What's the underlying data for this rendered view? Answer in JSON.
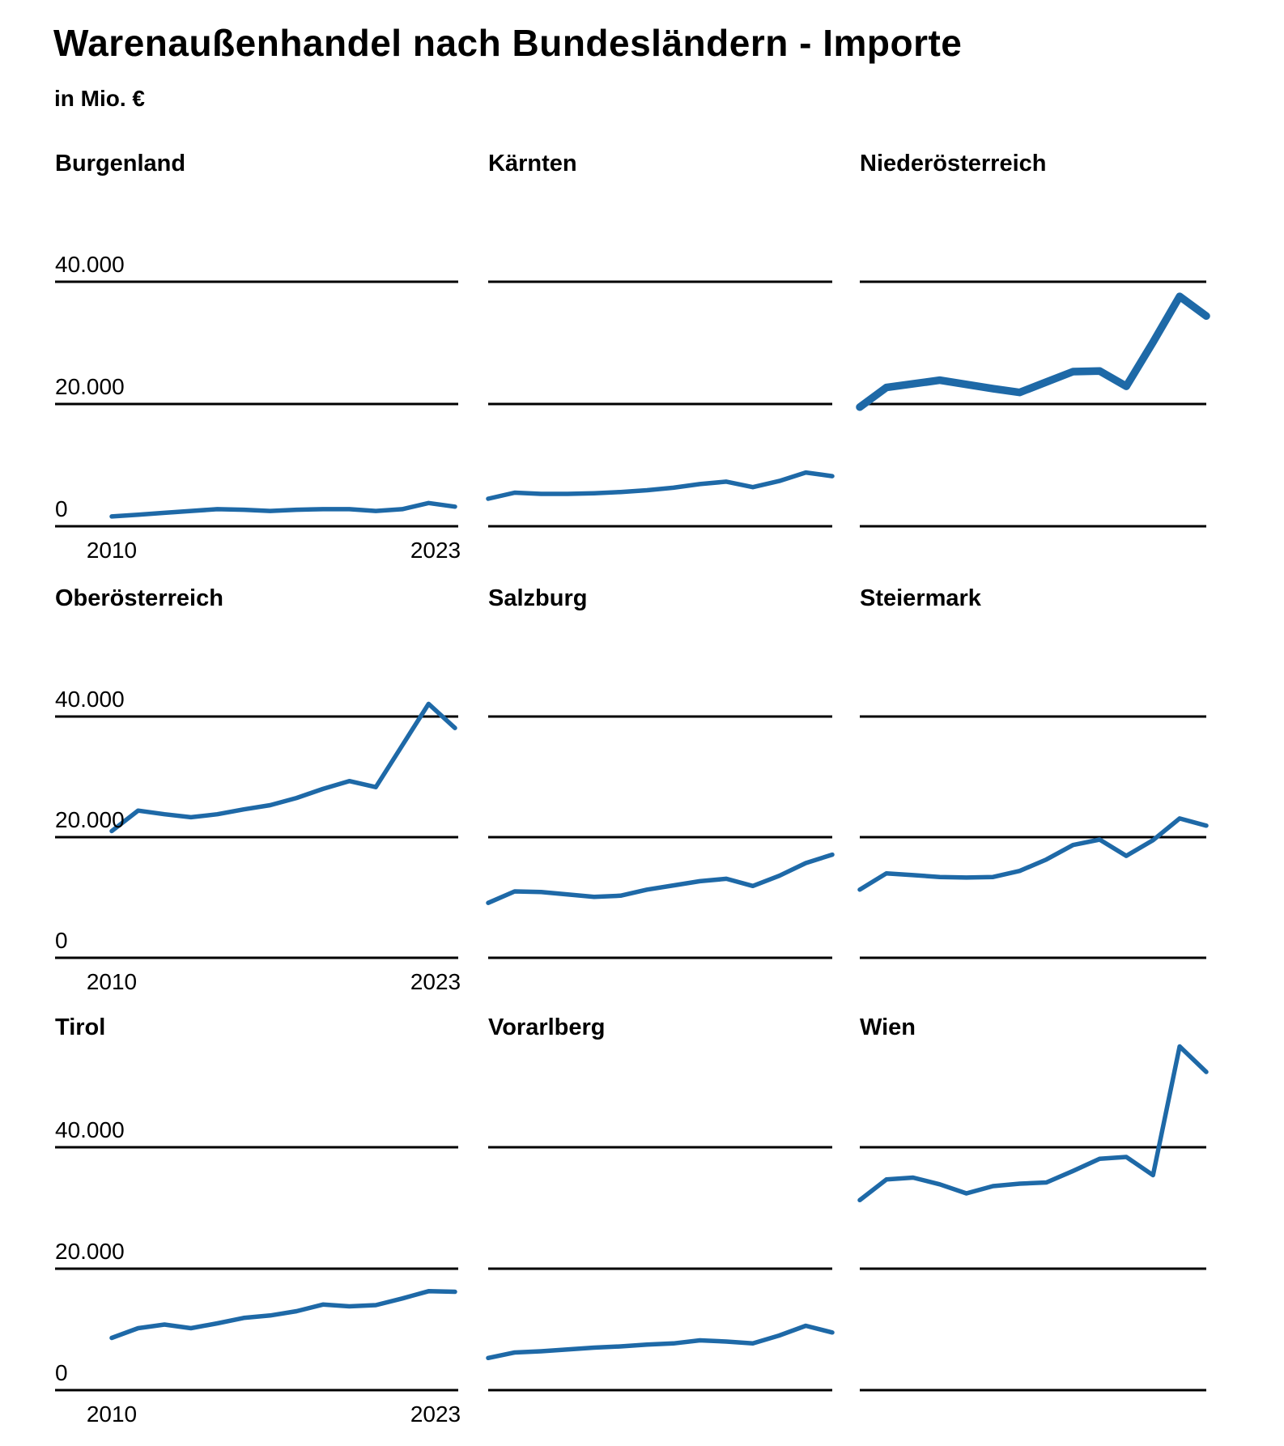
{
  "page": {
    "title": "Warenaußenhandel nach Bundesländern - Importe",
    "subtitle": "in Mio. €"
  },
  "colors": {
    "line": "#1E69A7",
    "axis": "#000000",
    "text": "#000000",
    "background": "#FFFFFF"
  },
  "axis": {
    "y_tick_labels": [
      "40.000",
      "20.000",
      "0"
    ],
    "y_tick_values": [
      40000,
      20000,
      0
    ],
    "x_tick_labels": [
      "2010",
      "2023"
    ],
    "grid": "horizontal-only",
    "legend": "none"
  },
  "chart_data": [
    {
      "type": "line",
      "title": "Burgenland",
      "x": [
        2010,
        2011,
        2012,
        2013,
        2014,
        2015,
        2016,
        2017,
        2018,
        2019,
        2020,
        2021,
        2022,
        2023
      ],
      "values": [
        1600,
        1900,
        2200,
        2500,
        2800,
        2700,
        2500,
        2700,
        2800,
        2800,
        2500,
        2800,
        3800,
        3200
      ],
      "ylim": [
        0,
        45000
      ],
      "highlighted": false
    },
    {
      "type": "line",
      "title": "Kärnten",
      "x": [
        2010,
        2011,
        2012,
        2013,
        2014,
        2015,
        2016,
        2017,
        2018,
        2019,
        2020,
        2021,
        2022,
        2023
      ],
      "values": [
        4500,
        5500,
        5300,
        5300,
        5400,
        5600,
        5900,
        6300,
        6900,
        7300,
        6400,
        7400,
        8800,
        8200
      ],
      "ylim": [
        0,
        45000
      ],
      "highlighted": false
    },
    {
      "type": "line",
      "title": "Niederösterreich",
      "x": [
        2010,
        2011,
        2012,
        2013,
        2014,
        2015,
        2016,
        2017,
        2018,
        2019,
        2020,
        2021,
        2022,
        2023
      ],
      "values": [
        19500,
        22700,
        23300,
        23900,
        23200,
        22500,
        21900,
        23600,
        25300,
        25400,
        22900,
        30100,
        37600,
        34400
      ],
      "ylim": [
        0,
        45000
      ],
      "highlighted": true
    },
    {
      "type": "line",
      "title": "Oberösterreich",
      "x": [
        2010,
        2011,
        2012,
        2013,
        2014,
        2015,
        2016,
        2017,
        2018,
        2019,
        2020,
        2021,
        2022,
        2023
      ],
      "values": [
        21000,
        24400,
        23800,
        23300,
        23800,
        24600,
        25300,
        26500,
        28000,
        29300,
        28300,
        35200,
        42100,
        38100
      ],
      "ylim": [
        0,
        45000
      ],
      "highlighted": false
    },
    {
      "type": "line",
      "title": "Salzburg",
      "x": [
        2010,
        2011,
        2012,
        2013,
        2014,
        2015,
        2016,
        2017,
        2018,
        2019,
        2020,
        2021,
        2022,
        2023
      ],
      "values": [
        9100,
        11000,
        10900,
        10500,
        10100,
        10300,
        11300,
        12000,
        12700,
        13100,
        11900,
        13600,
        15700,
        17100
      ],
      "ylim": [
        0,
        45000
      ],
      "highlighted": false
    },
    {
      "type": "line",
      "title": "Steiermark",
      "x": [
        2010,
        2011,
        2012,
        2013,
        2014,
        2015,
        2016,
        2017,
        2018,
        2019,
        2020,
        2021,
        2022,
        2023
      ],
      "values": [
        11300,
        14000,
        13700,
        13400,
        13300,
        13400,
        14400,
        16300,
        18700,
        19600,
        16900,
        19500,
        23100,
        21900
      ],
      "ylim": [
        0,
        45000
      ],
      "highlighted": false
    },
    {
      "type": "line",
      "title": "Tirol",
      "x": [
        2010,
        2011,
        2012,
        2013,
        2014,
        2015,
        2016,
        2017,
        2018,
        2019,
        2020,
        2021,
        2022,
        2023
      ],
      "values": [
        8600,
        10200,
        10800,
        10200,
        11000,
        11900,
        12300,
        13000,
        14100,
        13800,
        14000,
        15100,
        16300,
        16200
      ],
      "ylim": [
        0,
        45000
      ],
      "highlighted": false
    },
    {
      "type": "line",
      "title": "Vorarlberg",
      "x": [
        2010,
        2011,
        2012,
        2013,
        2014,
        2015,
        2016,
        2017,
        2018,
        2019,
        2020,
        2021,
        2022,
        2023
      ],
      "values": [
        5300,
        6200,
        6400,
        6700,
        7000,
        7200,
        7500,
        7700,
        8200,
        8000,
        7700,
        9000,
        10600,
        9500
      ],
      "ylim": [
        0,
        45000
      ],
      "highlighted": false
    },
    {
      "type": "line",
      "title": "Wien",
      "x": [
        2010,
        2011,
        2012,
        2013,
        2014,
        2015,
        2016,
        2017,
        2018,
        2019,
        2020,
        2021,
        2022,
        2023
      ],
      "values": [
        31300,
        34700,
        35000,
        33900,
        32400,
        33600,
        34000,
        34200,
        36100,
        38100,
        38400,
        35400,
        56600,
        52400
      ],
      "ylim": [
        0,
        45000
      ],
      "highlighted": false
    }
  ]
}
